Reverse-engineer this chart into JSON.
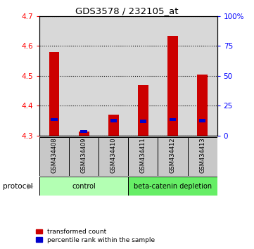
{
  "title": "GDS3578 / 232105_at",
  "samples": [
    "GSM434408",
    "GSM434409",
    "GSM434410",
    "GSM434411",
    "GSM434412",
    "GSM434413"
  ],
  "transformed_counts": [
    4.58,
    4.315,
    4.37,
    4.47,
    4.635,
    4.505
  ],
  "percentile_ranks": [
    13.5,
    3.5,
    12.5,
    12.0,
    13.5,
    12.5
  ],
  "ylim_left": [
    4.3,
    4.7
  ],
  "ylim_right": [
    0,
    100
  ],
  "yticks_left": [
    4.3,
    4.4,
    4.5,
    4.6,
    4.7
  ],
  "yticks_right": [
    0,
    25,
    50,
    75,
    100
  ],
  "bar_bottom": 4.3,
  "groups": [
    {
      "label": "control",
      "indices": [
        0,
        1,
        2
      ],
      "color": "#b3ffb3"
    },
    {
      "label": "beta-catenin depletion",
      "indices": [
        3,
        4,
        5
      ],
      "color": "#66ee66"
    }
  ],
  "bar_color_red": "#cc0000",
  "bar_color_blue": "#0000cc",
  "background_color": "#ffffff",
  "panel_bg": "#d8d8d8",
  "legend_red": "transformed count",
  "legend_blue": "percentile rank within the sample"
}
